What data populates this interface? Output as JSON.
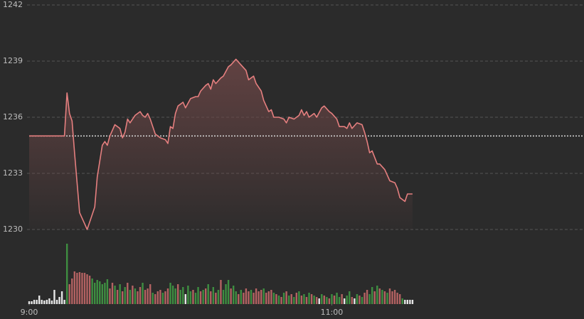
{
  "chart_data": [
    {
      "type": "line",
      "x": [
        0,
        14,
        15,
        16,
        17,
        18,
        20,
        22,
        23,
        24,
        26,
        27,
        29,
        30,
        31,
        32,
        34,
        36,
        37,
        38,
        39,
        40,
        42,
        44,
        45,
        46,
        47,
        48,
        50,
        52,
        54,
        55,
        56,
        57,
        58,
        59,
        61,
        62,
        64,
        66,
        67,
        68,
        70,
        71,
        72,
        73,
        74,
        76,
        77,
        79,
        80,
        82,
        84,
        86,
        87,
        89,
        90,
        92,
        93,
        95,
        96,
        97,
        99,
        101,
        102,
        103,
        105,
        107,
        108,
        109,
        110,
        111,
        113,
        114,
        116,
        117,
        119,
        120,
        122,
        123,
        125,
        126,
        127,
        128,
        130,
        132,
        133,
        134,
        135,
        136,
        138,
        139,
        141,
        143,
        145,
        146,
        147,
        149,
        150,
        152
      ],
      "values": [
        1235.0,
        1235.0,
        1237.3,
        1236.2,
        1235.8,
        1234.1,
        1230.9,
        1230.3,
        1230.0,
        1230.4,
        1231.2,
        1232.8,
        1234.5,
        1234.7,
        1234.5,
        1235.0,
        1235.6,
        1235.4,
        1234.9,
        1235.2,
        1235.9,
        1235.7,
        1236.1,
        1236.3,
        1236.1,
        1236.0,
        1236.2,
        1235.9,
        1235.1,
        1234.9,
        1234.8,
        1234.6,
        1235.5,
        1235.4,
        1236.2,
        1236.6,
        1236.8,
        1236.5,
        1237.0,
        1237.1,
        1237.1,
        1237.4,
        1237.7,
        1237.8,
        1237.5,
        1238.0,
        1237.8,
        1238.1,
        1238.2,
        1238.7,
        1238.8,
        1239.1,
        1238.8,
        1238.5,
        1238.0,
        1238.2,
        1237.8,
        1237.4,
        1236.9,
        1236.3,
        1236.4,
        1236.0,
        1236.0,
        1235.9,
        1235.7,
        1236.0,
        1235.9,
        1236.1,
        1236.4,
        1236.1,
        1236.3,
        1236.0,
        1236.2,
        1236.0,
        1236.5,
        1236.6,
        1236.3,
        1236.2,
        1235.9,
        1235.5,
        1235.5,
        1235.4,
        1235.7,
        1235.4,
        1235.7,
        1235.6,
        1235.2,
        1234.7,
        1234.1,
        1234.2,
        1233.5,
        1233.5,
        1233.2,
        1232.6,
        1232.5,
        1232.2,
        1231.7,
        1231.5,
        1231.9,
        1231.9
      ],
      "color": "#e57f7f",
      "area_color": "#6b4646",
      "reference_line": 1235,
      "reference_color": "#d9d9d9",
      "xlim": [
        0,
        220
      ],
      "ylim": [
        1230,
        1242
      ],
      "yticks": [
        1230,
        1233,
        1236,
        1239,
        1242
      ],
      "grid": true
    },
    {
      "type": "bar",
      "x": [
        0,
        1,
        2,
        3,
        4,
        5,
        6,
        7,
        8,
        9,
        10,
        11,
        12,
        13,
        14,
        15,
        16,
        17,
        18,
        19,
        20,
        21,
        22,
        23,
        24,
        25,
        26,
        27,
        28,
        29,
        30,
        31,
        32,
        33,
        34,
        35,
        36,
        37,
        38,
        39,
        40,
        41,
        42,
        43,
        44,
        45,
        46,
        47,
        48,
        49,
        50,
        51,
        52,
        53,
        54,
        55,
        56,
        57,
        58,
        59,
        60,
        61,
        62,
        63,
        64,
        65,
        66,
        67,
        68,
        69,
        70,
        71,
        72,
        73,
        74,
        75,
        76,
        77,
        78,
        79,
        80,
        81,
        82,
        83,
        84,
        85,
        86,
        87,
        88,
        89,
        90,
        91,
        92,
        93,
        94,
        95,
        96,
        97,
        98,
        99,
        100,
        101,
        102,
        103,
        104,
        105,
        106,
        107,
        108,
        109,
        110,
        111,
        112,
        113,
        114,
        115,
        116,
        117,
        118,
        119,
        120,
        121,
        122,
        123,
        124,
        125,
        126,
        127,
        128,
        129,
        130,
        131,
        132,
        133,
        134,
        135,
        136,
        137,
        138,
        139,
        140,
        141,
        142,
        143,
        144,
        145,
        146,
        147,
        148,
        149,
        150,
        151,
        152
      ],
      "values": [
        4,
        4,
        6,
        6,
        12,
        6,
        5,
        6,
        8,
        5,
        20,
        6,
        10,
        18,
        6,
        85,
        28,
        36,
        46,
        44,
        45,
        44,
        44,
        42,
        40,
        36,
        30,
        34,
        32,
        28,
        30,
        35,
        22,
        30,
        26,
        20,
        28,
        18,
        24,
        30,
        20,
        26,
        22,
        18,
        24,
        30,
        20,
        22,
        28,
        16,
        14,
        18,
        20,
        16,
        18,
        22,
        30,
        26,
        22,
        28,
        20,
        24,
        14,
        26,
        18,
        20,
        16,
        24,
        18,
        20,
        22,
        28,
        18,
        24,
        16,
        20,
        34,
        20,
        28,
        34,
        22,
        26,
        18,
        14,
        20,
        16,
        22,
        18,
        20,
        16,
        22,
        18,
        20,
        22,
        16,
        18,
        20,
        16,
        14,
        12,
        10,
        16,
        18,
        12,
        14,
        10,
        16,
        18,
        12,
        14,
        10,
        16,
        14,
        12,
        10,
        8,
        14,
        12,
        10,
        8,
        14,
        12,
        16,
        10,
        14,
        8,
        12,
        18,
        10,
        8,
        14,
        12,
        10,
        16,
        20,
        14,
        24,
        18,
        26,
        22,
        20,
        18,
        16,
        22,
        18,
        20,
        16,
        14,
        8,
        6,
        6,
        6,
        6
      ],
      "colors": [
        "#e6e6e6",
        "#e6e6e6",
        "#e6e6e6",
        "#e6e6e6",
        "#e6e6e6",
        "#e6e6e6",
        "#e6e6e6",
        "#e6e6e6",
        "#e6e6e6",
        "#e6e6e6",
        "#e6e6e6",
        "#e6e6e6",
        "#e6e6e6",
        "#e6e6e6",
        "#e6e6e6",
        "#3e8e41",
        "#b36262",
        "#b36262",
        "#b36262",
        "#b36262",
        "#b36262",
        "#b36262",
        "#b36262",
        "#b36262",
        "#b36262",
        "#3e8e41",
        "#3e8e41",
        "#3e8e41",
        "#3e8e41",
        "#3e8e41",
        "#3e8e41",
        "#3e8e41",
        "#b36262",
        "#b36262",
        "#3e8e41",
        "#b36262",
        "#3e8e41",
        "#b36262",
        "#3e8e41",
        "#b36262",
        "#3e8e41",
        "#b36262",
        "#3e8e41",
        "#b36262",
        "#b36262",
        "#3e8e41",
        "#b36262",
        "#b36262",
        "#b36262",
        "#3e8e41",
        "#b36262",
        "#b36262",
        "#b36262",
        "#3e8e41",
        "#b36262",
        "#b36262",
        "#3e8e41",
        "#3e8e41",
        "#3e8e41",
        "#b36262",
        "#3e8e41",
        "#3e8e41",
        "#e6e6e6",
        "#3e8e41",
        "#3e8e41",
        "#b36262",
        "#3e8e41",
        "#3e8e41",
        "#b36262",
        "#3e8e41",
        "#b36262",
        "#3e8e41",
        "#b36262",
        "#3e8e41",
        "#b36262",
        "#3e8e41",
        "#b36262",
        "#3e8e41",
        "#3e8e41",
        "#3e8e41",
        "#b36262",
        "#3e8e41",
        "#3e8e41",
        "#b36262",
        "#3e8e41",
        "#b36262",
        "#b36262",
        "#b36262",
        "#3e8e41",
        "#b36262",
        "#b36262",
        "#b36262",
        "#b36262",
        "#3e8e41",
        "#b36262",
        "#b36262",
        "#b36262",
        "#3e8e41",
        "#b36262",
        "#3e8e41",
        "#b36262",
        "#3e8e41",
        "#b36262",
        "#3e8e41",
        "#b36262",
        "#3e8e41",
        "#b36262",
        "#3e8e41",
        "#b36262",
        "#3e8e41",
        "#b36262",
        "#3e8e41",
        "#b36262",
        "#3e8e41",
        "#b36262",
        "#e6e6e6",
        "#3e8e41",
        "#b36262",
        "#3e8e41",
        "#b36262",
        "#3e8e41",
        "#b36262",
        "#3e8e41",
        "#3e8e41",
        "#b36262",
        "#e6e6e6",
        "#3e8e41",
        "#3e8e41",
        "#b36262",
        "#e6e6e6",
        "#3e8e41",
        "#b36262",
        "#3e8e41",
        "#b36262",
        "#b36262",
        "#3e8e41",
        "#3e8e41",
        "#b36262",
        "#3e8e41",
        "#b36262",
        "#3e8e41",
        "#b36262",
        "#3e8e41",
        "#b36262",
        "#b36262",
        "#b36262",
        "#b36262",
        "#b36262",
        "#3e8e41",
        "#e6e6e6",
        "#e6e6e6",
        "#e6e6e6",
        "#e6e6e6"
      ],
      "xlim": [
        0,
        220
      ],
      "ylim": [
        0,
        90
      ],
      "xticks": [
        {
          "value": 0,
          "label": "9:00"
        },
        {
          "value": 120,
          "label": "11:00"
        }
      ]
    }
  ]
}
